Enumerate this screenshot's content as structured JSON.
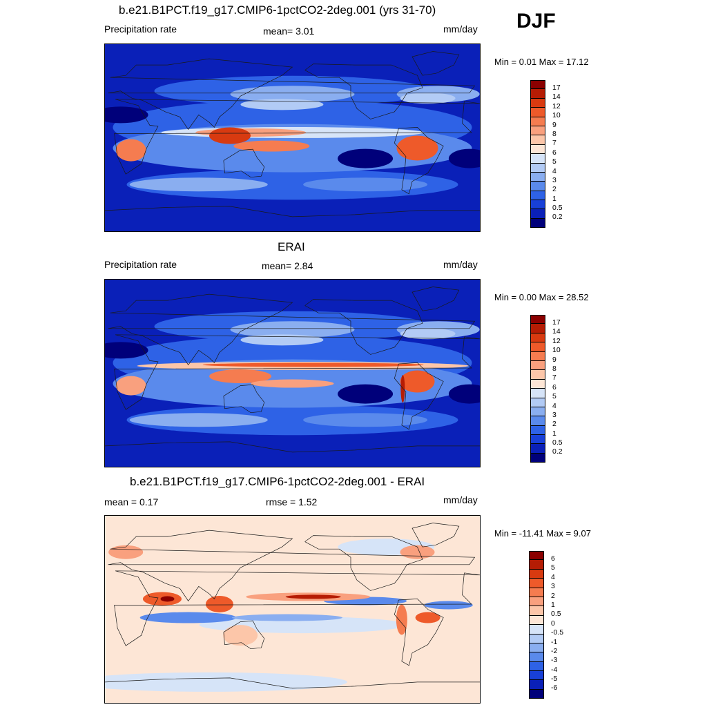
{
  "season": "DJF",
  "panels": [
    {
      "id": "model",
      "title": "b.e21.B1PCT.f19_g17.CMIP6-1pctCO2-2deg.001 (yrs 31-70)",
      "left_label": "Precipitation rate",
      "center_label": "mean=   3.01",
      "units": "mm/day",
      "minmax": "Min =   0.01 Max =  17.12",
      "palette": "precip",
      "colorbar_labels": [
        "17",
        "14",
        "12",
        "10",
        "9",
        "8",
        "7",
        "6",
        "5",
        "4",
        "3",
        "2",
        "1",
        "0.5",
        "0.2"
      ]
    },
    {
      "id": "obs",
      "title": "ERAI",
      "left_label": "Precipitation rate",
      "center_label": "mean=   2.84",
      "units": "mm/day",
      "minmax": "Min =   0.00 Max =  28.52",
      "palette": "precip",
      "colorbar_labels": [
        "17",
        "14",
        "12",
        "10",
        "9",
        "8",
        "7",
        "6",
        "5",
        "4",
        "3",
        "2",
        "1",
        "0.5",
        "0.2"
      ]
    },
    {
      "id": "diff",
      "title": "b.e21.B1PCT.f19_g17.CMIP6-1pctCO2-2deg.001 - ERAI",
      "left_label": "mean =   0.17",
      "center_label": "rmse =   1.52",
      "units": "mm/day",
      "minmax": "Min = -11.41 Max =   9.07",
      "palette": "diff",
      "colorbar_labels": [
        "6",
        "5",
        "4",
        "3",
        "2",
        "1",
        "0.5",
        "0",
        "-0.5",
        "-1",
        "-2",
        "-3",
        "-4",
        "-5",
        "-6"
      ]
    }
  ],
  "colors": {
    "precip": [
      "#8b0000",
      "#b51c04",
      "#d83a10",
      "#ee5a2a",
      "#f57c50",
      "#f9a07e",
      "#fcc6a9",
      "#fde6d6",
      "#d6e4f8",
      "#b2cbf5",
      "#8aaef0",
      "#5a8aec",
      "#2e62e6",
      "#1840d8",
      "#0a20b8",
      "#00007a"
    ],
    "diff": [
      "#8b0000",
      "#b51c04",
      "#d83a10",
      "#ee5a2a",
      "#f57c50",
      "#f9a07e",
      "#fcc6a9",
      "#fde6d6",
      "#d6e4f8",
      "#b2cbf5",
      "#8aaef0",
      "#5a8aec",
      "#2e62e6",
      "#1840d8",
      "#0a20b8",
      "#00007a"
    ]
  }
}
